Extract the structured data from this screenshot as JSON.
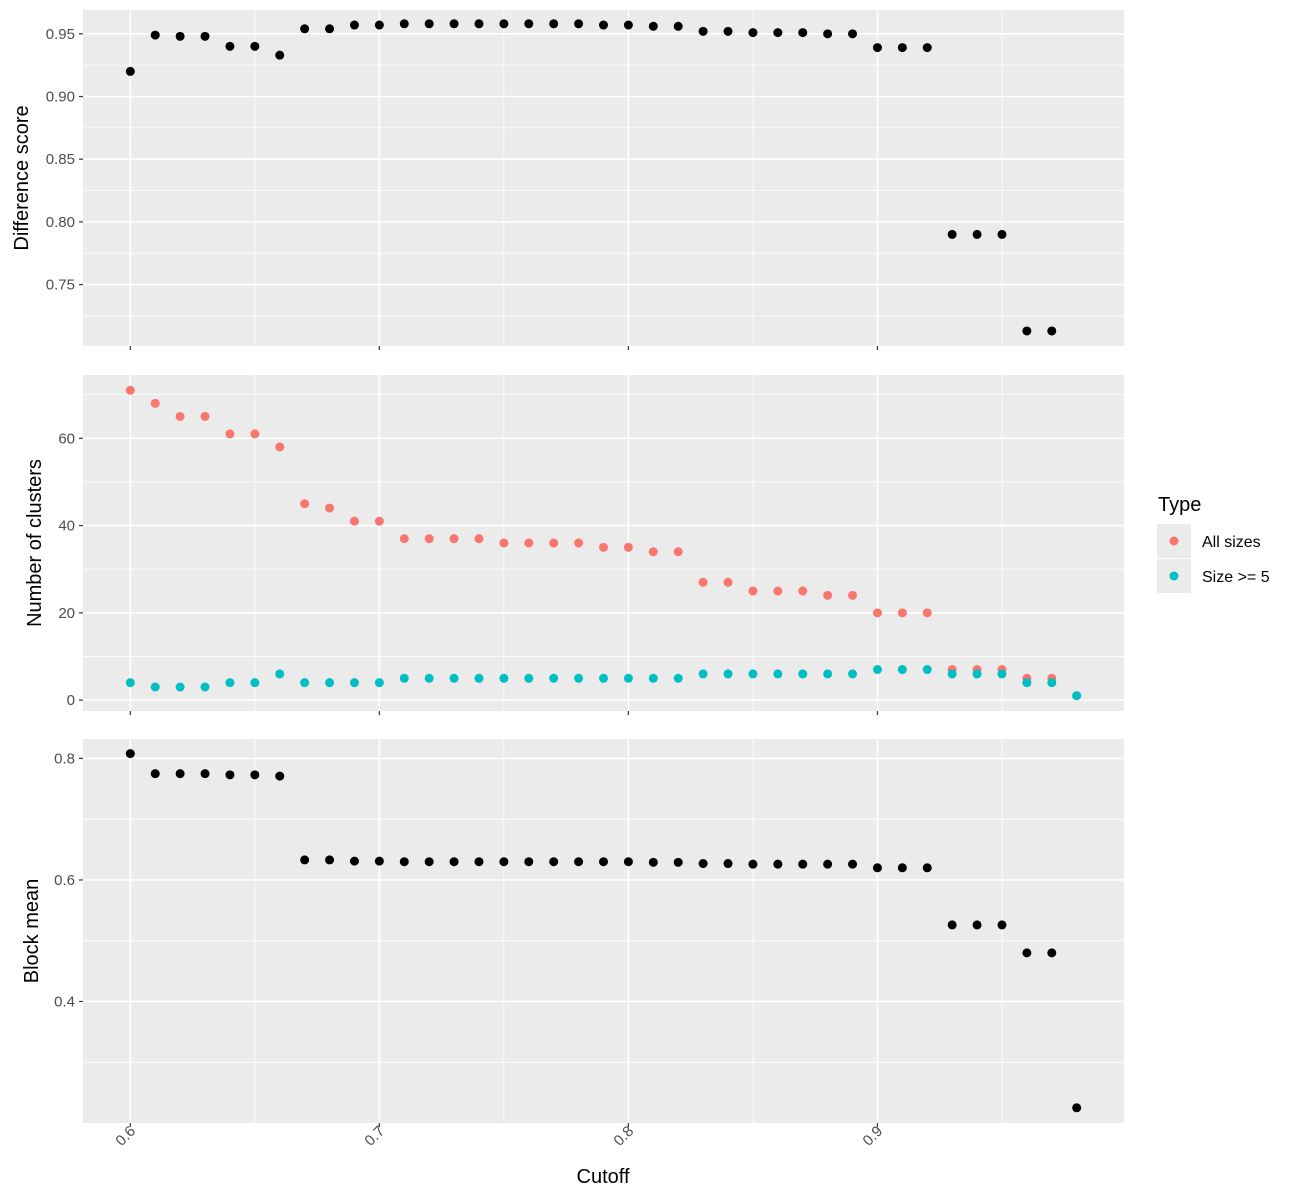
{
  "chart_data": [
    {
      "type": "scatter",
      "id": "difference",
      "xlabel": "",
      "ylabel": "Difference score",
      "xlim": [
        0.581,
        0.999
      ],
      "ylim": [
        0.701,
        0.969
      ],
      "yticks": [
        0.75,
        0.8,
        0.85,
        0.9,
        0.95
      ],
      "ytick_labels": [
        "0.75",
        "0.80",
        "0.85",
        "0.90",
        "0.95"
      ],
      "grid": true,
      "series": [
        {
          "color": "#000000",
          "x": [
            0.6,
            0.61,
            0.62,
            0.63,
            0.64,
            0.65,
            0.66,
            0.67,
            0.68,
            0.69,
            0.7,
            0.71,
            0.72,
            0.73,
            0.74,
            0.75,
            0.76,
            0.77,
            0.78,
            0.79,
            0.8,
            0.81,
            0.82,
            0.83,
            0.84,
            0.85,
            0.86,
            0.87,
            0.88,
            0.89,
            0.9,
            0.91,
            0.92,
            0.93,
            0.94,
            0.95,
            0.96,
            0.97
          ],
          "y": [
            0.92,
            0.949,
            0.948,
            0.948,
            0.94,
            0.94,
            0.933,
            0.954,
            0.954,
            0.957,
            0.957,
            0.958,
            0.958,
            0.958,
            0.958,
            0.958,
            0.958,
            0.958,
            0.958,
            0.957,
            0.957,
            0.956,
            0.956,
            0.952,
            0.952,
            0.951,
            0.951,
            0.951,
            0.95,
            0.95,
            0.939,
            0.939,
            0.939,
            0.79,
            0.79,
            0.79,
            0.713,
            0.713
          ]
        }
      ]
    },
    {
      "type": "scatter",
      "id": "clusters",
      "xlabel": "",
      "ylabel": "Number of clusters",
      "xlim": [
        0.581,
        0.999
      ],
      "ylim": [
        -2.5,
        74.5
      ],
      "yticks": [
        0,
        20,
        40,
        60
      ],
      "ytick_labels": [
        "0",
        "20",
        "40",
        "60"
      ],
      "grid": true,
      "legend": {
        "title": "Type",
        "position": "right",
        "entries": [
          "All sizes",
          "Size >= 5"
        ]
      },
      "series": [
        {
          "name": "All sizes",
          "color": "#F8766D",
          "x": [
            0.6,
            0.61,
            0.62,
            0.63,
            0.64,
            0.65,
            0.66,
            0.67,
            0.68,
            0.69,
            0.7,
            0.71,
            0.72,
            0.73,
            0.74,
            0.75,
            0.76,
            0.77,
            0.78,
            0.79,
            0.8,
            0.81,
            0.82,
            0.83,
            0.84,
            0.85,
            0.86,
            0.87,
            0.88,
            0.89,
            0.9,
            0.91,
            0.92,
            0.93,
            0.94,
            0.95,
            0.96,
            0.97,
            0.98
          ],
          "y": [
            71,
            68,
            65,
            65,
            61,
            61,
            58,
            45,
            44,
            41,
            41,
            37,
            37,
            37,
            37,
            36,
            36,
            36,
            36,
            35,
            35,
            34,
            34,
            27,
            27,
            25,
            25,
            25,
            24,
            24,
            20,
            20,
            20,
            7,
            7,
            7,
            5,
            5,
            1
          ]
        },
        {
          "name": "Size >= 5",
          "color": "#00BFC4",
          "x": [
            0.6,
            0.61,
            0.62,
            0.63,
            0.64,
            0.65,
            0.66,
            0.67,
            0.68,
            0.69,
            0.7,
            0.71,
            0.72,
            0.73,
            0.74,
            0.75,
            0.76,
            0.77,
            0.78,
            0.79,
            0.8,
            0.81,
            0.82,
            0.83,
            0.84,
            0.85,
            0.86,
            0.87,
            0.88,
            0.89,
            0.9,
            0.91,
            0.92,
            0.93,
            0.94,
            0.95,
            0.96,
            0.97,
            0.98
          ],
          "y": [
            4,
            3,
            3,
            3,
            4,
            4,
            6,
            4,
            4,
            4,
            4,
            5,
            5,
            5,
            5,
            5,
            5,
            5,
            5,
            5,
            5,
            5,
            5,
            6,
            6,
            6,
            6,
            6,
            6,
            6,
            7,
            7,
            7,
            6,
            6,
            6,
            4,
            4,
            1
          ]
        }
      ]
    },
    {
      "type": "scatter",
      "id": "blockmean",
      "xlabel": "Cutoff",
      "ylabel": "Block mean",
      "xlim": [
        0.581,
        0.999
      ],
      "ylim": [
        0.2,
        0.832
      ],
      "yticks": [
        0.4,
        0.6,
        0.8
      ],
      "ytick_labels": [
        "0.4",
        "0.6",
        "0.8"
      ],
      "xticks": [
        0.6,
        0.7,
        0.8,
        0.9
      ],
      "xtick_labels": [
        "0.6",
        "0.7",
        "0.8",
        "0.9"
      ],
      "grid": true,
      "series": [
        {
          "color": "#000000",
          "x": [
            0.6,
            0.61,
            0.62,
            0.63,
            0.64,
            0.65,
            0.66,
            0.67,
            0.68,
            0.69,
            0.7,
            0.71,
            0.72,
            0.73,
            0.74,
            0.75,
            0.76,
            0.77,
            0.78,
            0.79,
            0.8,
            0.81,
            0.82,
            0.83,
            0.84,
            0.85,
            0.86,
            0.87,
            0.88,
            0.89,
            0.9,
            0.91,
            0.92,
            0.93,
            0.94,
            0.95,
            0.96,
            0.97,
            0.98
          ],
          "y": [
            0.808,
            0.775,
            0.775,
            0.775,
            0.773,
            0.773,
            0.771,
            0.633,
            0.633,
            0.631,
            0.631,
            0.63,
            0.63,
            0.63,
            0.63,
            0.63,
            0.63,
            0.63,
            0.63,
            0.63,
            0.63,
            0.629,
            0.629,
            0.627,
            0.627,
            0.626,
            0.626,
            0.626,
            0.626,
            0.626,
            0.62,
            0.62,
            0.62,
            0.526,
            0.526,
            0.526,
            0.48,
            0.48,
            0.225
          ]
        }
      ]
    }
  ]
}
